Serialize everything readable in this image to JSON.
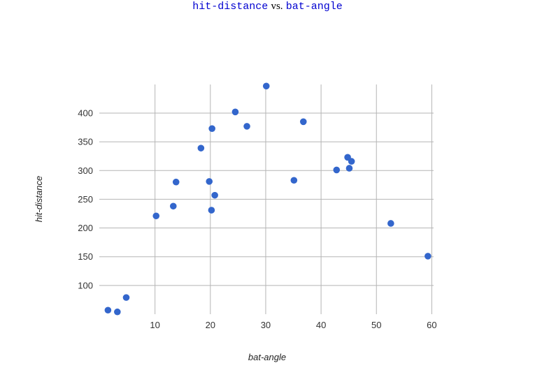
{
  "chart_data": {
    "type": "scatter",
    "title": {
      "x_field": "hit-distance",
      "connector": "vs.",
      "y_field": "bat-angle"
    },
    "xlabel": "bat-angle",
    "ylabel": "hit-distance",
    "xlim": [
      0,
      60
    ],
    "ylim": [
      50,
      450
    ],
    "x_ticks": [
      "10",
      "20",
      "30",
      "40",
      "50",
      "60"
    ],
    "y_ticks": [
      "100",
      "150",
      "200",
      "250",
      "300",
      "350",
      "400"
    ],
    "grid": true,
    "point_color": "#3366cc",
    "grid_color": "#b5b5b5",
    "points": [
      {
        "x": 1.5,
        "y": 57
      },
      {
        "x": 3.2,
        "y": 54
      },
      {
        "x": 4.8,
        "y": 79
      },
      {
        "x": 10.2,
        "y": 221
      },
      {
        "x": 13.3,
        "y": 238
      },
      {
        "x": 13.8,
        "y": 280
      },
      {
        "x": 18.3,
        "y": 339
      },
      {
        "x": 19.8,
        "y": 281
      },
      {
        "x": 20.2,
        "y": 231
      },
      {
        "x": 20.3,
        "y": 373
      },
      {
        "x": 20.8,
        "y": 257
      },
      {
        "x": 24.5,
        "y": 402
      },
      {
        "x": 26.6,
        "y": 377
      },
      {
        "x": 30.1,
        "y": 447
      },
      {
        "x": 35.1,
        "y": 283
      },
      {
        "x": 36.8,
        "y": 385
      },
      {
        "x": 42.8,
        "y": 301
      },
      {
        "x": 44.8,
        "y": 323
      },
      {
        "x": 45.1,
        "y": 304
      },
      {
        "x": 45.5,
        "y": 316
      },
      {
        "x": 52.6,
        "y": 208
      },
      {
        "x": 59.3,
        "y": 151
      }
    ]
  }
}
